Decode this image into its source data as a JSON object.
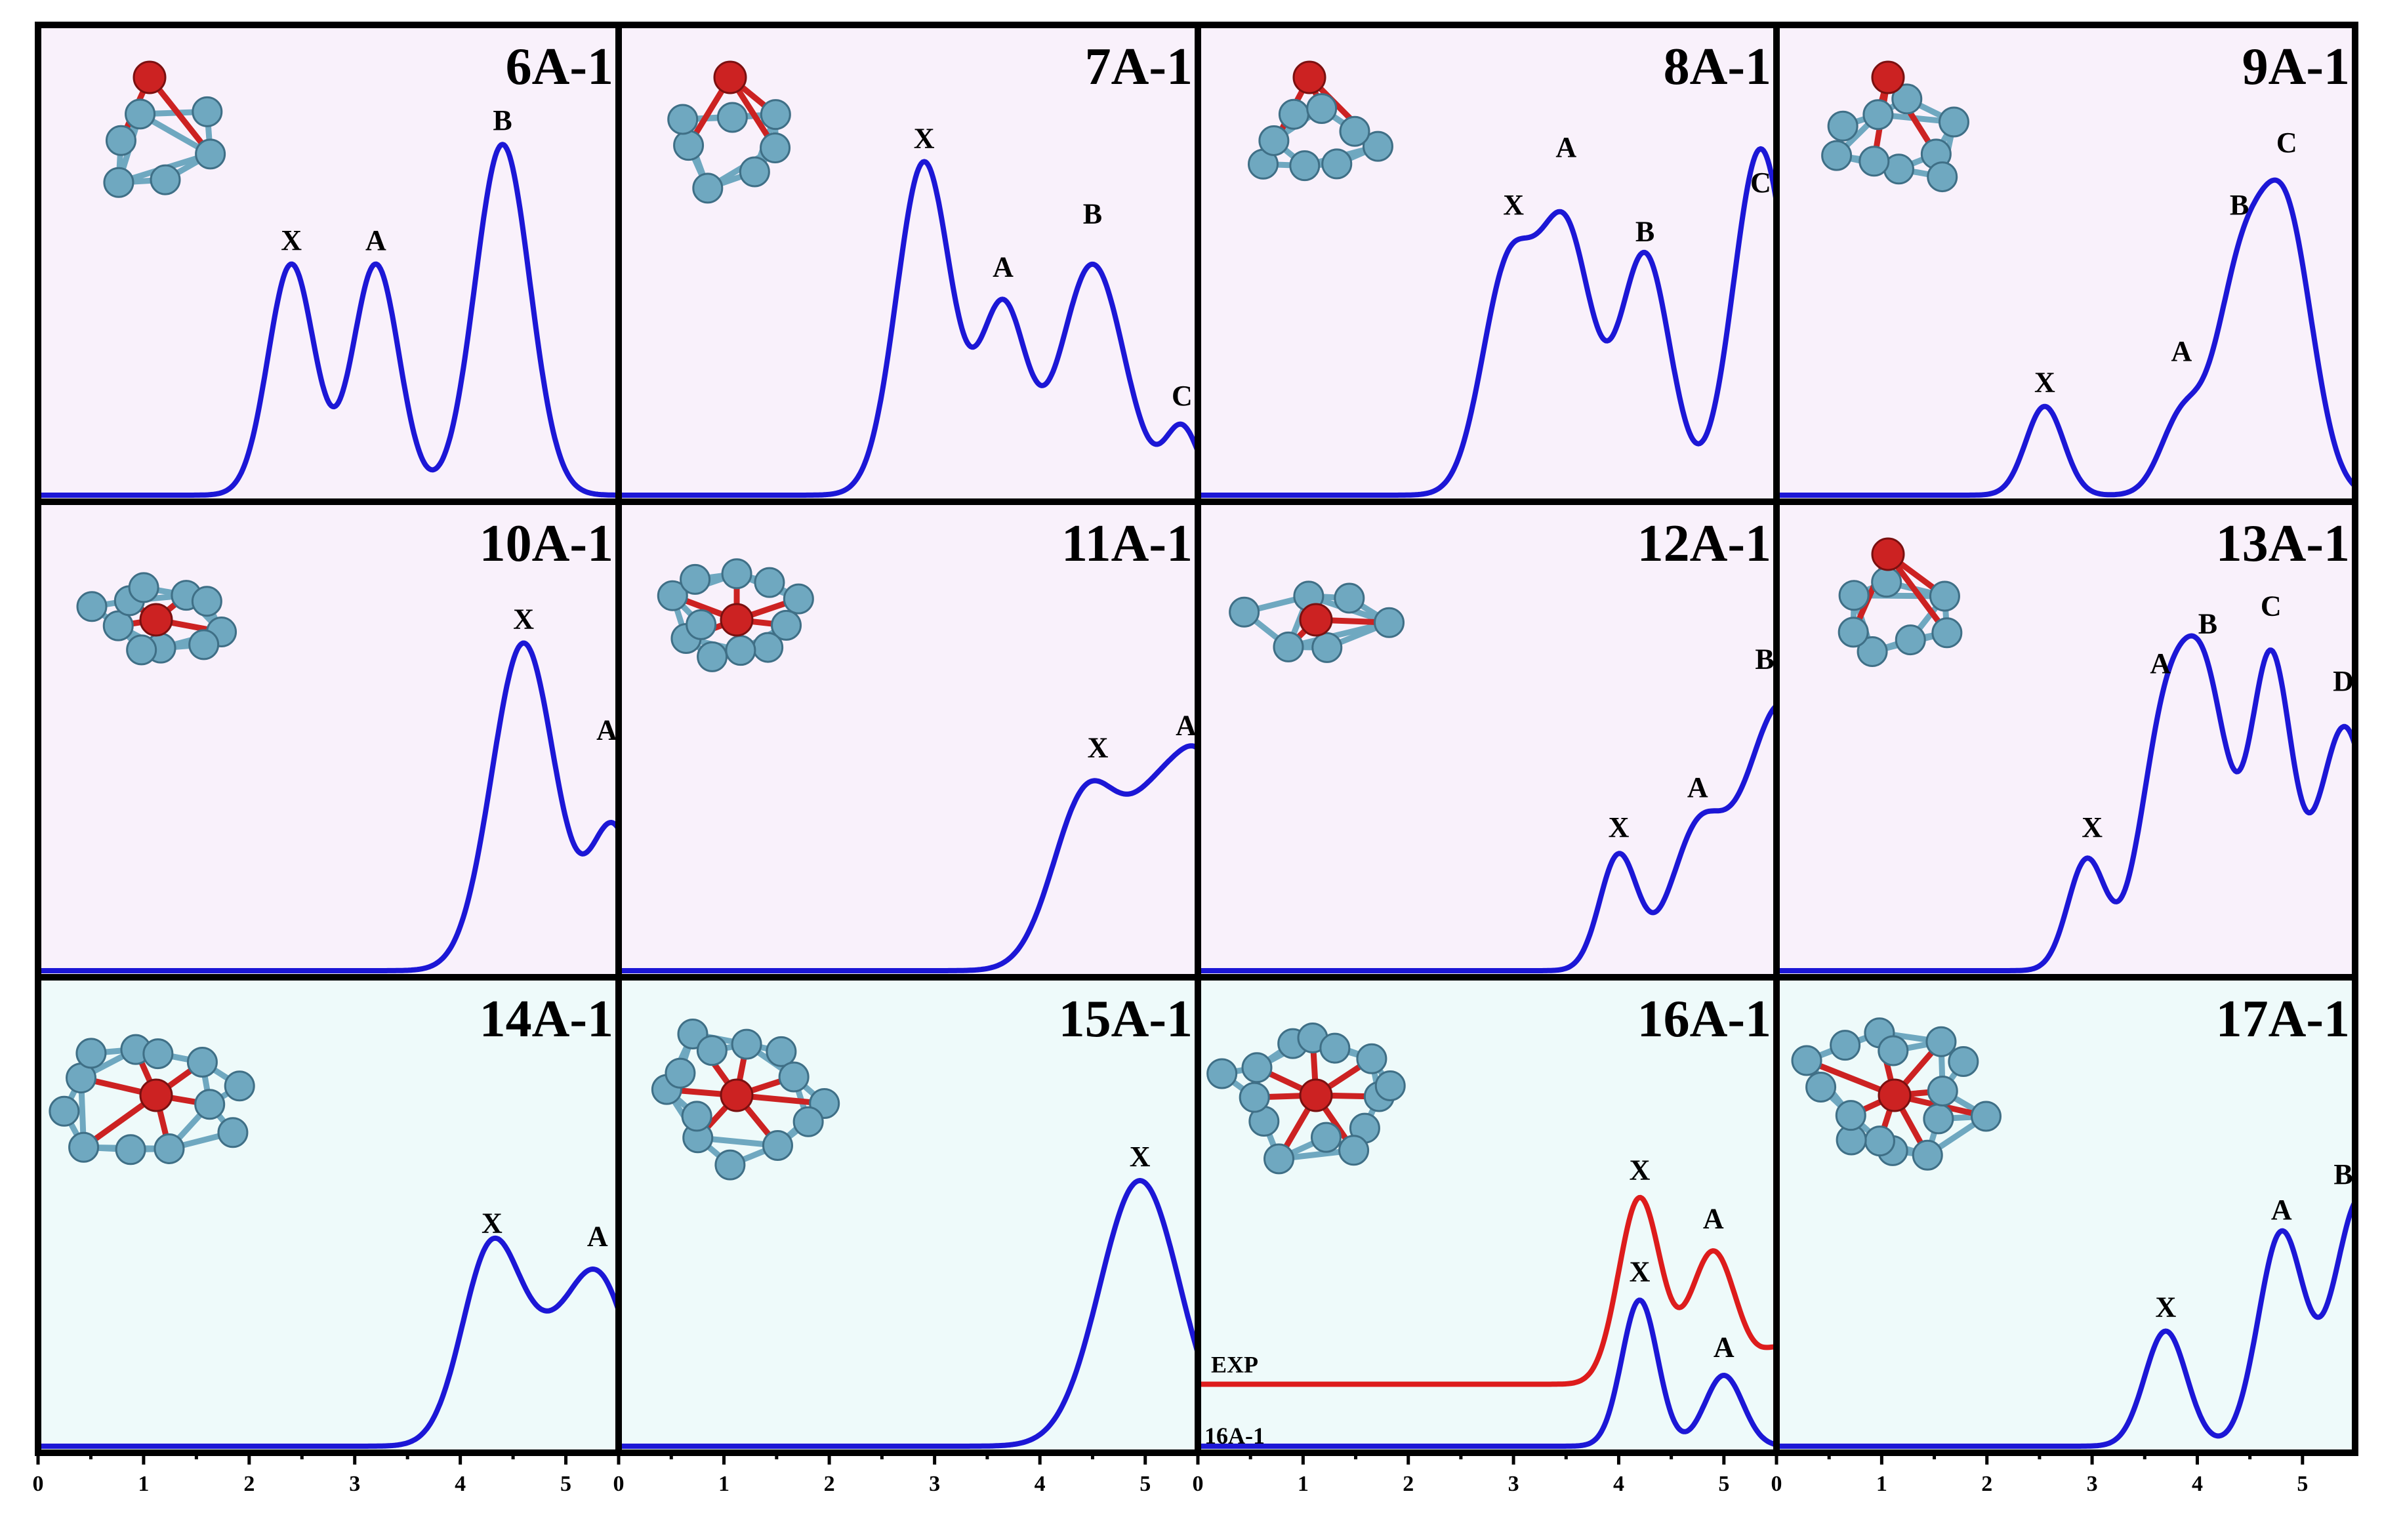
{
  "chart_data": [
    {
      "type": "line",
      "title": "6A-1",
      "xlim": [
        0,
        5.5
      ],
      "ylim": [
        0,
        1
      ],
      "series": [
        {
          "color": "#1c17d6",
          "peaks": [
            {
              "x": 2.4,
              "y": 0.52,
              "w": 0.22
            },
            {
              "x": 3.2,
              "y": 0.52,
              "w": 0.22
            },
            {
              "x": 4.4,
              "y": 0.79,
              "w": 0.26
            }
          ]
        }
      ],
      "annotations": [
        {
          "text": "X",
          "x": 2.4,
          "y": 0.52
        },
        {
          "text": "A",
          "x": 3.2,
          "y": 0.52
        },
        {
          "text": "B",
          "x": 4.4,
          "y": 0.79
        }
      ],
      "background": "#f9f1fb"
    },
    {
      "type": "line",
      "title": "7A-1",
      "xlim": [
        0,
        5.5
      ],
      "ylim": [
        0,
        1
      ],
      "series": [
        {
          "color": "#1c17d6",
          "peaks": [
            {
              "x": 2.9,
              "y": 0.75,
              "w": 0.26
            },
            {
              "x": 3.65,
              "y": 0.42,
              "w": 0.22
            },
            {
              "x": 4.5,
              "y": 0.52,
              "w": 0.3
            },
            {
              "x": 5.35,
              "y": 0.15,
              "w": 0.16
            }
          ]
        }
      ],
      "annotations": [
        {
          "text": "X",
          "x": 2.9,
          "y": 0.75
        },
        {
          "text": "A",
          "x": 3.65,
          "y": 0.46
        },
        {
          "text": "B",
          "x": 4.5,
          "y": 0.58
        },
        {
          "text": "C",
          "x": 5.35,
          "y": 0.17
        }
      ],
      "background": "#f9f1fb"
    },
    {
      "type": "line",
      "title": "8A-1",
      "xlim": [
        0,
        5.5
      ],
      "ylim": [
        0,
        1
      ],
      "series": [
        {
          "color": "#1c17d6",
          "peaks": [
            {
              "x": 2.95,
              "y": 0.5,
              "w": 0.25
            },
            {
              "x": 3.5,
              "y": 0.58,
              "w": 0.25
            },
            {
              "x": 4.25,
              "y": 0.54,
              "w": 0.24
            },
            {
              "x": 5.35,
              "y": 0.78,
              "w": 0.26
            }
          ]
        }
      ],
      "annotations": [
        {
          "text": "X",
          "x": 3.0,
          "y": 0.6
        },
        {
          "text": "A",
          "x": 3.5,
          "y": 0.73
        },
        {
          "text": "B",
          "x": 4.25,
          "y": 0.54
        },
        {
          "text": "C",
          "x": 5.35,
          "y": 0.65
        }
      ],
      "background": "#f9f1fb"
    },
    {
      "type": "line",
      "title": "9A-1",
      "xlim": [
        0,
        5.5
      ],
      "ylim": [
        0,
        1
      ],
      "series": [
        {
          "color": "#1c17d6",
          "peaks": [
            {
              "x": 2.55,
              "y": 0.2,
              "w": 0.18
            },
            {
              "x": 3.85,
              "y": 0.17,
              "w": 0.2
            },
            {
              "x": 4.4,
              "y": 0.45,
              "w": 0.24
            },
            {
              "x": 4.85,
              "y": 0.6,
              "w": 0.25
            }
          ]
        }
      ],
      "annotations": [
        {
          "text": "X",
          "x": 2.55,
          "y": 0.2
        },
        {
          "text": "A",
          "x": 3.85,
          "y": 0.27
        },
        {
          "text": "B",
          "x": 4.4,
          "y": 0.6
        },
        {
          "text": "C",
          "x": 4.85,
          "y": 0.74
        }
      ],
      "background": "#f9f1fb"
    },
    {
      "type": "line",
      "title": "10A-1",
      "xlim": [
        0,
        5.5
      ],
      "ylim": [
        0,
        1
      ],
      "series": [
        {
          "color": "#1c17d6",
          "peaks": [
            {
              "x": 4.6,
              "y": 0.74,
              "w": 0.3
            },
            {
              "x": 5.45,
              "y": 0.32,
              "w": 0.22
            }
          ]
        }
      ],
      "annotations": [
        {
          "text": "X",
          "x": 4.6,
          "y": 0.74
        },
        {
          "text": "A",
          "x": 5.4,
          "y": 0.49
        }
      ],
      "background": "#f9f1fb"
    },
    {
      "type": "line",
      "title": "11A-1",
      "xlim": [
        0,
        5.5
      ],
      "ylim": [
        0,
        1
      ],
      "series": [
        {
          "color": "#1c17d6",
          "peaks": [
            {
              "x": 4.45,
              "y": 0.4,
              "w": 0.32
            },
            {
              "x": 5.15,
              "y": 0.35,
              "w": 0.3
            },
            {
              "x": 5.6,
              "y": 0.35,
              "w": 0.25
            }
          ]
        }
      ],
      "annotations": [
        {
          "text": "X",
          "x": 4.55,
          "y": 0.45
        },
        {
          "text": "A",
          "x": 5.4,
          "y": 0.5
        }
      ],
      "background": "#f9f1fb"
    },
    {
      "type": "line",
      "title": "12A-1",
      "xlim": [
        0,
        5.5
      ],
      "ylim": [
        0,
        1
      ],
      "series": [
        {
          "color": "#1c17d6",
          "peaks": [
            {
              "x": 4.0,
              "y": 0.26,
              "w": 0.18
            },
            {
              "x": 4.75,
              "y": 0.3,
              "w": 0.26
            },
            {
              "x": 5.55,
              "y": 0.6,
              "w": 0.35
            }
          ]
        }
      ],
      "annotations": [
        {
          "text": "X",
          "x": 4.0,
          "y": 0.27
        },
        {
          "text": "A",
          "x": 4.75,
          "y": 0.36
        },
        {
          "text": "B",
          "x": 5.4,
          "y": 0.65
        }
      ],
      "background": "#f9f1fb"
    },
    {
      "type": "line",
      "title": "13A-1",
      "xlim": [
        0,
        5.5
      ],
      "ylim": [
        0,
        1
      ],
      "series": [
        {
          "color": "#1c17d6",
          "peaks": [
            {
              "x": 2.95,
              "y": 0.25,
              "w": 0.18
            },
            {
              "x": 3.7,
              "y": 0.55,
              "w": 0.24
            },
            {
              "x": 4.1,
              "y": 0.55,
              "w": 0.22
            },
            {
              "x": 4.7,
              "y": 0.7,
              "w": 0.2
            },
            {
              "x": 5.4,
              "y": 0.55,
              "w": 0.25
            }
          ]
        }
      ],
      "annotations": [
        {
          "text": "X",
          "x": 3.0,
          "y": 0.27
        },
        {
          "text": "A",
          "x": 3.65,
          "y": 0.64
        },
        {
          "text": "B",
          "x": 4.1,
          "y": 0.73
        },
        {
          "text": "C",
          "x": 4.7,
          "y": 0.77
        },
        {
          "text": "D",
          "x": 5.4,
          "y": 0.6
        }
      ],
      "background": "#f9f1fb"
    },
    {
      "type": "line",
      "title": "14A-1",
      "xlim": [
        0,
        5.5
      ],
      "ylim": [
        0,
        1
      ],
      "series": [
        {
          "color": "#1c17d6",
          "peaks": [
            {
              "x": 4.3,
              "y": 0.45,
              "w": 0.28
            },
            {
              "x": 5.3,
              "y": 0.38,
              "w": 0.3
            },
            {
              "x": 4.8,
              "y": 0.12,
              "w": 0.25
            }
          ]
        }
      ],
      "annotations": [
        {
          "text": "X",
          "x": 4.3,
          "y": 0.45
        },
        {
          "text": "A",
          "x": 5.3,
          "y": 0.42
        }
      ],
      "background": "#eefafa"
    },
    {
      "type": "line",
      "title": "15A-1",
      "xlim": [
        0,
        5.5
      ],
      "ylim": [
        0,
        1
      ],
      "series": [
        {
          "color": "#1c17d6",
          "peaks": [
            {
              "x": 4.95,
              "y": 0.6,
              "w": 0.38
            }
          ]
        }
      ],
      "annotations": [
        {
          "text": "X",
          "x": 4.95,
          "y": 0.6
        }
      ],
      "background": "#eefafa"
    },
    {
      "type": "line",
      "title": "16A-1",
      "xlim": [
        0,
        5.5
      ],
      "ylim": [
        0,
        1
      ],
      "series": [
        {
          "name": "EXP",
          "color": "#dd1c1c",
          "offset": 0.14,
          "peaks": [
            {
              "x": 4.2,
              "y": 0.42,
              "w": 0.2
            },
            {
              "x": 4.9,
              "y": 0.3,
              "w": 0.22
            },
            {
              "x": 5.55,
              "y": 0.08,
              "w": 0.2
            }
          ]
        },
        {
          "name": "16A-1",
          "color": "#1c17d6",
          "peaks": [
            {
              "x": 4.2,
              "y": 0.33,
              "w": 0.17
            },
            {
              "x": 5.0,
              "y": 0.16,
              "w": 0.18
            }
          ]
        }
      ],
      "annotations": [
        {
          "text": "X",
          "x": 4.2,
          "y": 0.57
        },
        {
          "text": "A",
          "x": 4.9,
          "y": 0.46
        },
        {
          "text": "X",
          "x": 4.2,
          "y": 0.34
        },
        {
          "text": "A",
          "x": 5.0,
          "y": 0.17
        }
      ],
      "background": "#eefafa"
    },
    {
      "type": "line",
      "title": "17A-1",
      "xlim": [
        0,
        5.5
      ],
      "ylim": [
        0,
        1
      ],
      "series": [
        {
          "color": "#1c17d6",
          "peaks": [
            {
              "x": 3.7,
              "y": 0.26,
              "w": 0.2
            },
            {
              "x": 4.8,
              "y": 0.48,
              "w": 0.22
            },
            {
              "x": 5.55,
              "y": 0.56,
              "w": 0.25
            }
          ]
        }
      ],
      "annotations": [
        {
          "text": "X",
          "x": 3.7,
          "y": 0.26
        },
        {
          "text": "A",
          "x": 4.8,
          "y": 0.48
        },
        {
          "text": "B",
          "x": 5.4,
          "y": 0.56
        }
      ],
      "background": "#eefafa"
    }
  ],
  "x_axis": {
    "tick_labels": [
      "0",
      "1",
      "2",
      "3",
      "4",
      "5"
    ],
    "tick_values": [
      0,
      1,
      2,
      3,
      4,
      5
    ],
    "xlim": [
      0,
      5.5
    ]
  },
  "series_labels": {
    "exp": "EXP",
    "calc": "16A-1"
  },
  "colors": {
    "calculated": "#1c17d6",
    "experimental": "#dd1c1c",
    "frame": "#000000",
    "atom_metal": "#6fa8c0",
    "atom_oxygen": "#cc2222"
  }
}
